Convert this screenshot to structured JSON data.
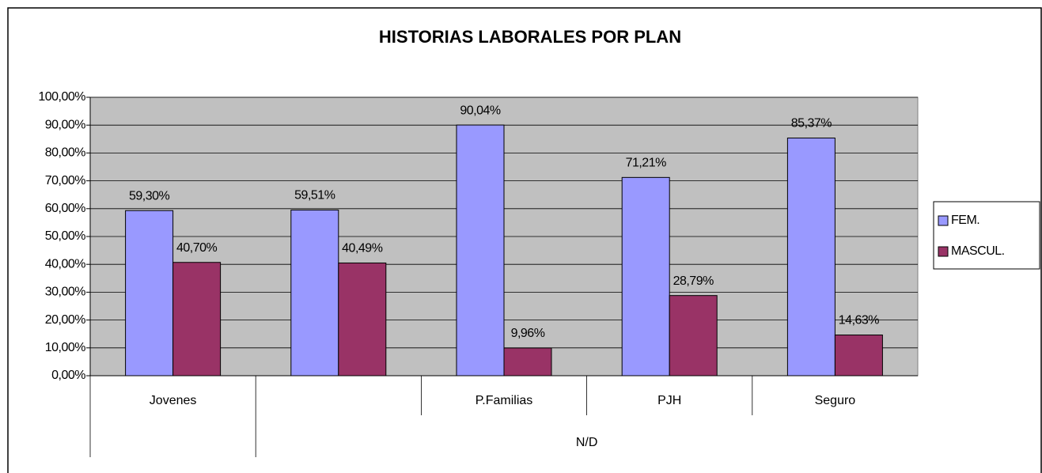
{
  "chart_data": {
    "type": "bar",
    "title": "HISTORIAS LABORALES POR PLAN",
    "categories": [
      "Jovenes",
      null,
      "P.Familias",
      "PJH",
      "Seguro"
    ],
    "group_label": "N/D",
    "series": [
      {
        "name": "FEM.",
        "color": "#9999ff",
        "values": [
          59.3,
          59.51,
          90.04,
          71.21,
          85.37
        ],
        "value_labels": [
          "59,30%",
          "59,51%",
          "90,04%",
          "71,21%",
          "85,37%"
        ]
      },
      {
        "name": "MASCUL.",
        "color": "#993366",
        "values": [
          40.7,
          40.49,
          9.96,
          28.79,
          14.63
        ],
        "value_labels": [
          "40,70%",
          "40,49%",
          "9,96%",
          "28,79%",
          "14,63%"
        ]
      }
    ],
    "ylim": [
      0,
      100
    ],
    "yticks": [
      {
        "value": 0,
        "label": "0,00%"
      },
      {
        "value": 10,
        "label": "10,00%"
      },
      {
        "value": 20,
        "label": "20,00%"
      },
      {
        "value": 30,
        "label": "30,00%"
      },
      {
        "value": 40,
        "label": "40,00%"
      },
      {
        "value": 50,
        "label": "50,00%"
      },
      {
        "value": 60,
        "label": "60,00%"
      },
      {
        "value": 70,
        "label": "70,00%"
      },
      {
        "value": 80,
        "label": "80,00%"
      },
      {
        "value": 90,
        "label": "90,00%"
      },
      {
        "value": 100,
        "label": "100,00%"
      }
    ],
    "grid": true,
    "plot_background": "#c0c0c0",
    "legend": "right"
  }
}
